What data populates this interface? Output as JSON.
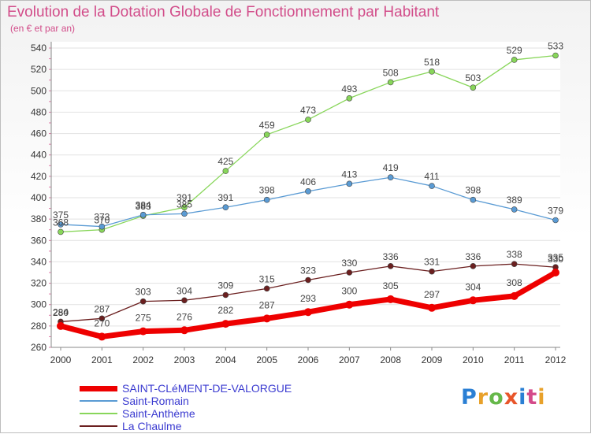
{
  "title": "Evolution de la Dotation Globale de Fonctionnement par Habitant",
  "subtitle": "(en € et par an)",
  "logo": {
    "text": "Proxiti",
    "colors": [
      "#2a7fd4",
      "#e8a12a",
      "#66b84a",
      "#e8552a",
      "#2a7fd4",
      "#d44a8a",
      "#e8a12a"
    ]
  },
  "chart_data": {
    "type": "line",
    "x": [
      "2000",
      "2001",
      "2002",
      "2003",
      "2004",
      "2005",
      "2006",
      "2007",
      "2008",
      "2009",
      "2010",
      "2011",
      "2012"
    ],
    "ylim": [
      260,
      540
    ],
    "yticks": [
      "260",
      "280",
      "300",
      "320",
      "340",
      "360",
      "380",
      "400",
      "420",
      "440",
      "460",
      "480",
      "500",
      "520",
      "540"
    ],
    "grid": "horizontal",
    "legend_position": "bottom-left",
    "series": [
      {
        "name": "SAINT-CLéMENT-DE-VALORGUE",
        "color": "#ee0000",
        "values": [
          280,
          270,
          275,
          276,
          282,
          287,
          293,
          300,
          305,
          297,
          304,
          308,
          330
        ],
        "labels": [
          "280",
          "270",
          "275",
          "276",
          "282",
          "287",
          "293",
          "300",
          "305",
          "297",
          "304",
          "308",
          "330"
        ]
      },
      {
        "name": "Saint-Romain",
        "color": "#5a9bd4",
        "values": [
          375,
          373,
          384,
          385,
          391,
          398,
          406,
          413,
          419,
          411,
          398,
          389,
          379
        ],
        "labels": [
          "375",
          "373",
          "384",
          "385",
          "391",
          "398",
          "406",
          "413",
          "419",
          "411",
          "398",
          "389",
          "379"
        ]
      },
      {
        "name": "Saint-Anthème",
        "color": "#88d65a",
        "values": [
          368,
          370,
          383,
          391,
          425,
          459,
          473,
          493,
          508,
          518,
          503,
          529,
          533
        ],
        "labels": [
          "368",
          "370",
          "383",
          "391",
          "425",
          "459",
          "473",
          "493",
          "508",
          "518",
          "503",
          "529",
          "533"
        ]
      },
      {
        "name": "La Chaulme",
        "color": "#6b1f1f",
        "values": [
          284,
          287,
          303,
          304,
          309,
          315,
          323,
          330,
          336,
          331,
          336,
          338,
          335
        ],
        "labels": [
          "284",
          "287",
          "303",
          "304",
          "309",
          "315",
          "323",
          "330",
          "336",
          "331",
          "336",
          "338",
          "335"
        ]
      }
    ]
  }
}
